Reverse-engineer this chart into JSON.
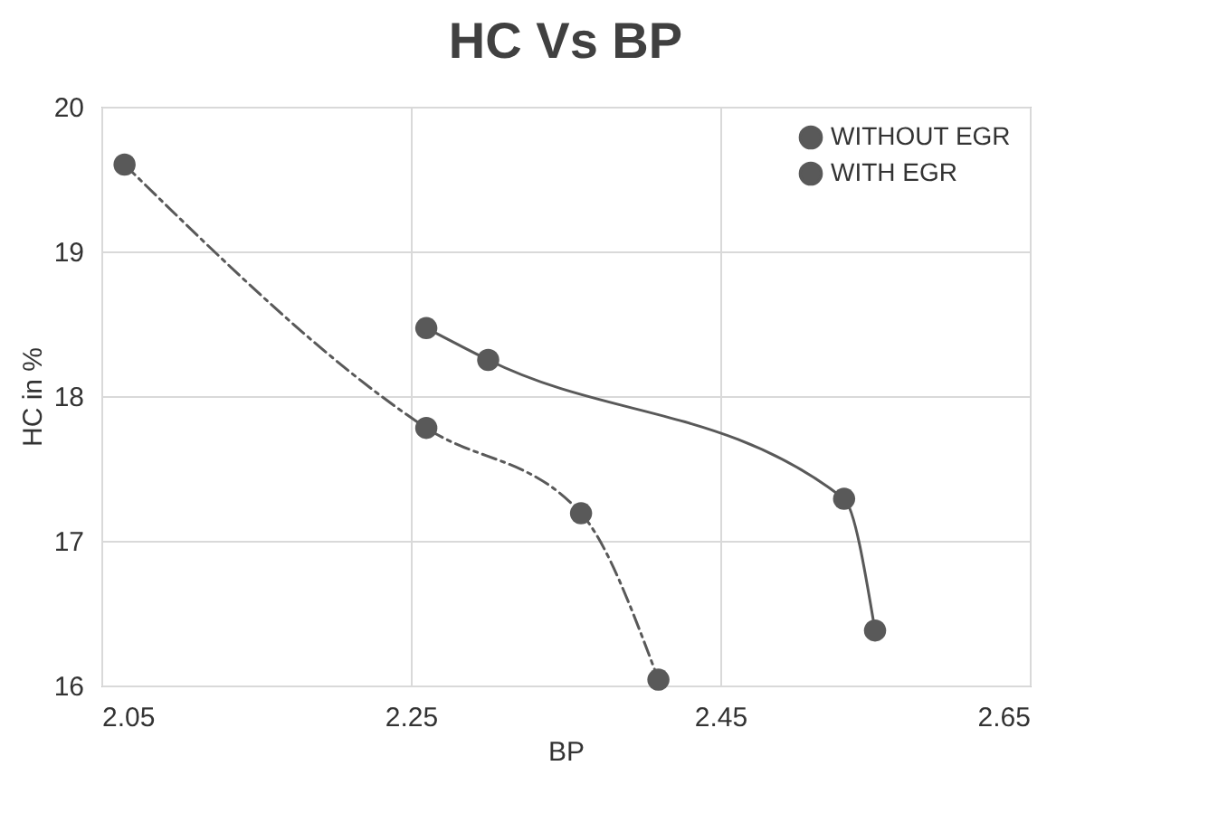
{
  "chart_data": {
    "type": "line",
    "title": "HC Vs BP",
    "xlabel": "BP",
    "ylabel": "HC in %",
    "xlim": [
      2.05,
      2.65
    ],
    "xticks": [
      2.05,
      2.25,
      2.45,
      2.65
    ],
    "ylim": [
      16,
      20
    ],
    "yticks": [
      16,
      17,
      18,
      19,
      20
    ],
    "grid": true,
    "legend": "top right",
    "marker": "circle",
    "series": [
      {
        "name": "WITHOUT EGR",
        "color": "#595959",
        "x": [
          2.26,
          2.3,
          2.53,
          2.55
        ],
        "values": [
          18.47,
          18.25,
          17.29,
          16.38
        ],
        "line_style": "solid"
      },
      {
        "name": "WITH EGR",
        "color": "#595959",
        "x": [
          2.065,
          2.26,
          2.36,
          2.41
        ],
        "values": [
          19.6,
          17.78,
          17.19,
          16.04
        ],
        "line_style": "dashed"
      }
    ]
  }
}
